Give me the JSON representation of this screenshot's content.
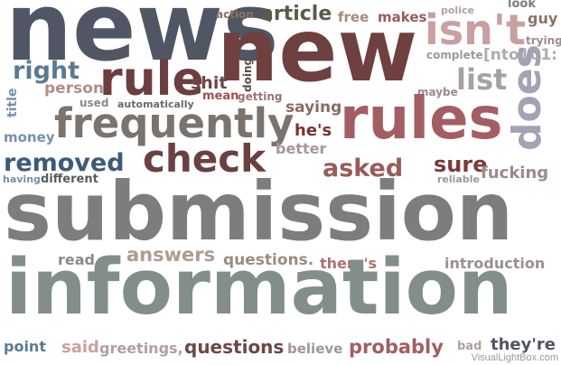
{
  "watermark": "VisualLightBox.com",
  "words": [
    {
      "text": "news",
      "color": "#505663"
    },
    {
      "text": "new",
      "color": "#6e4040"
    },
    {
      "text": "isn't",
      "color": "#c9a0a0"
    },
    {
      "text": "action",
      "color": "#8a7560"
    },
    {
      "text": "article",
      "color": "#5c5a48"
    },
    {
      "text": "free",
      "color": "#a88a7a"
    },
    {
      "text": "makes",
      "color": "#9a5a5a"
    },
    {
      "text": "police",
      "color": "#b0a0a0"
    },
    {
      "text": "look",
      "color": "#7d7d7d"
    },
    {
      "text": "guy",
      "color": "#8a7268"
    },
    {
      "text": "trying",
      "color": "#a08c8c"
    },
    {
      "text": "complete",
      "color": "#9a9aa0"
    },
    {
      "text": "[nto101:",
      "color": "#b0aab0"
    },
    {
      "text": "right",
      "color": "#5a7a94"
    },
    {
      "text": "rule",
      "color": "#6b3f3f"
    },
    {
      "text": "shit",
      "color": "#6e4848"
    },
    {
      "text": "doing",
      "color": "#5e4c4c"
    },
    {
      "text": "list",
      "color": "#a8a0a6"
    },
    {
      "text": "person",
      "color": "#b08e86"
    },
    {
      "text": "title",
      "color": "#7a90a8"
    },
    {
      "text": "used",
      "color": "#8a8a8a"
    },
    {
      "text": "mean",
      "color": "#a05050"
    },
    {
      "text": "getting",
      "color": "#a07070"
    },
    {
      "text": "maybe",
      "color": "#9a8a8a"
    },
    {
      "text": "does",
      "color": "#a3a3b6"
    },
    {
      "text": "automatically",
      "color": "#6a6a6a"
    },
    {
      "text": "saying",
      "color": "#8a6a64"
    },
    {
      "text": "rules",
      "color": "#a35e63"
    },
    {
      "text": "frequently",
      "color": "#7b736d"
    },
    {
      "text": "money",
      "color": "#7a90a8"
    },
    {
      "text": "he's",
      "color": "#7a3232"
    },
    {
      "text": "better",
      "color": "#a89696"
    },
    {
      "text": "check",
      "color": "#6b4040"
    },
    {
      "text": "removed",
      "color": "#3d5a78"
    },
    {
      "text": "asked",
      "color": "#9a5a5a"
    },
    {
      "text": "sure",
      "color": "#7a3a3a"
    },
    {
      "text": "fucking",
      "color": "#9e8a8a"
    },
    {
      "text": "having",
      "color": "#7a90a8"
    },
    {
      "text": "different",
      "color": "#5a5a5a"
    },
    {
      "text": "reliable",
      "color": "#a09696"
    },
    {
      "text": "submission",
      "color": "#7b7e7c"
    },
    {
      "text": "read",
      "color": "#8a8a8a"
    },
    {
      "text": "answers",
      "color": "#b09a94"
    },
    {
      "text": "questions.",
      "color": "#9a8a84"
    },
    {
      "text": "there's",
      "color": "#ad7070"
    },
    {
      "text": "introduction",
      "color": "#9a9090"
    },
    {
      "text": "information",
      "color": "#838d8c"
    },
    {
      "text": "point",
      "color": "#5a7a94"
    },
    {
      "text": "said",
      "color": "#c9a0a0"
    },
    {
      "text": "greetings,",
      "color": "#b0a0a0"
    },
    {
      "text": "questions",
      "color": "#6b4848"
    },
    {
      "text": "believe",
      "color": "#a09696"
    },
    {
      "text": "probably",
      "color": "#a35e63"
    },
    {
      "text": "bad",
      "color": "#b0a0a0"
    },
    {
      "text": "they're",
      "color": "#505663"
    }
  ]
}
